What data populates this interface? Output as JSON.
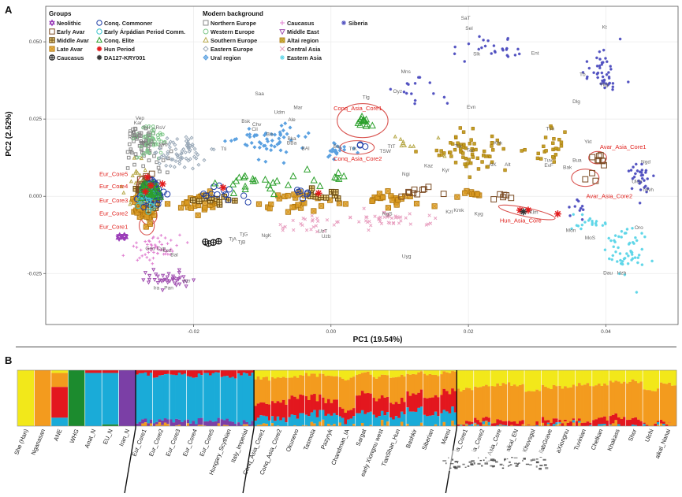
{
  "panels": {
    "a": "A",
    "b": "B"
  },
  "chart_data": [
    {
      "type": "scatter",
      "panel": "A",
      "xlabel": "PC1 (19.54%)",
      "ylabel": "PC2 (2.52%)",
      "xlim": [
        -0.0415,
        0.0505
      ],
      "ylim": [
        -0.0415,
        0.0615
      ],
      "xticks": [
        -0.02,
        0.0,
        0.02,
        0.04
      ],
      "xtick_labels": [
        "-0.02",
        "0.00",
        "0.02",
        "0.04"
      ],
      "yticks": [
        -0.025,
        0.0,
        0.025,
        0.05
      ],
      "ytick_labels": [
        "-0.025",
        "0.000",
        "0.025",
        "0.050"
      ],
      "legend": {
        "groups_title": "Groups",
        "groups": [
          {
            "name": "Neolithic",
            "marker": "hexagram",
            "color": "#9b3db8"
          },
          {
            "name": "Early Avar",
            "marker": "square",
            "color": "#7a4a22"
          },
          {
            "name": "Middle Avar",
            "marker": "square-cross",
            "color": "#6b4a10"
          },
          {
            "name": "Late Avar",
            "marker": "square-x",
            "color": "#d99a22"
          },
          {
            "name": "Caucasus",
            "marker": "circle-plus",
            "color": "#111111"
          },
          {
            "name": "Conq. Commoner",
            "marker": "circle",
            "color": "#1f3fa8"
          },
          {
            "name": "Early Árpádian Period Comm.",
            "marker": "circle",
            "color": "#3fc4cf"
          },
          {
            "name": "Conq. Elite",
            "marker": "triangle",
            "color": "#2ca02c"
          },
          {
            "name": "Hun Period",
            "marker": "star",
            "color": "#e31a1c"
          },
          {
            "name": "DA127-KRY001",
            "marker": "star",
            "color": "#333333"
          }
        ],
        "background_title": "Modern background",
        "background": [
          {
            "name": "Northern Europe",
            "marker": "square",
            "color": "#8a8a8a"
          },
          {
            "name": "Western Europe",
            "marker": "circle",
            "color": "#7fc88a"
          },
          {
            "name": "Southern Europe",
            "marker": "triangle",
            "color": "#b7a94a"
          },
          {
            "name": "Eastern Europe",
            "marker": "diamond",
            "color": "#9aa9b8"
          },
          {
            "name": "Ural region",
            "marker": "diamond-plus",
            "color": "#5aa0e0"
          },
          {
            "name": "Caucasus",
            "marker": "plus",
            "color": "#e07fd0"
          },
          {
            "name": "Middle East",
            "marker": "triangle-down",
            "color": "#a04fb0"
          },
          {
            "name": "Altai region",
            "marker": "square-x",
            "color": "#c0a020"
          },
          {
            "name": "Central Asia",
            "marker": "x",
            "color": "#e8a0c0"
          },
          {
            "name": "Eastern Asia",
            "marker": "asterisk",
            "color": "#5fd6e8"
          },
          {
            "name": "Siberia",
            "marker": "asterisk",
            "color": "#5050c0"
          }
        ]
      },
      "cluster_labels": [
        {
          "text": "Conq_Asia_Core1",
          "x": 0.0039,
          "y": 0.0278
        },
        {
          "text": "Conq_Asia_Core2",
          "x": 0.0039,
          "y": 0.0115
        },
        {
          "text": "Eur_Core5",
          "x": -0.0337,
          "y": 0.0065
        },
        {
          "text": "Eur_Core4",
          "x": -0.0337,
          "y": 0.0026
        },
        {
          "text": "Eur_Core3",
          "x": -0.0337,
          "y": -0.002
        },
        {
          "text": "Eur_Core2",
          "x": -0.0337,
          "y": -0.0062
        },
        {
          "text": "Eur_Core1",
          "x": -0.0337,
          "y": -0.0105
        },
        {
          "text": "Avar_Asia_Core1",
          "x": 0.0425,
          "y": 0.0153
        },
        {
          "text": "Avar_Asia_Core2",
          "x": 0.0405,
          "y": -0.0006
        },
        {
          "text": "Hun_Asia_Core",
          "x": 0.0276,
          "y": -0.0085
        }
      ],
      "population_labels": [
        {
          "text": "SaT",
          "x": 0.0196,
          "y": 0.0572
        },
        {
          "text": "Sel",
          "x": 0.0201,
          "y": 0.0538
        },
        {
          "text": "Slk",
          "x": 0.0212,
          "y": 0.0456
        },
        {
          "text": "Ent",
          "x": 0.0297,
          "y": 0.0458
        },
        {
          "text": "Kt",
          "x": 0.0398,
          "y": 0.0542
        },
        {
          "text": "Mns",
          "x": 0.0109,
          "y": 0.0398
        },
        {
          "text": "Saa",
          "x": -0.0104,
          "y": 0.0327
        },
        {
          "text": "Mar",
          "x": -0.0048,
          "y": 0.0282
        },
        {
          "text": "Udm",
          "x": -0.0075,
          "y": 0.0267
        },
        {
          "text": "Ale",
          "x": -0.0057,
          "y": 0.0243
        },
        {
          "text": "Bsk",
          "x": -0.0124,
          "y": 0.0238
        },
        {
          "text": "Chv",
          "x": -0.0108,
          "y": 0.0228
        },
        {
          "text": "Cil",
          "x": -0.0111,
          "y": 0.0212
        },
        {
          "text": "Bls",
          "x": -0.0089,
          "y": 0.0196
        },
        {
          "text": "Bka",
          "x": -0.0057,
          "y": 0.0182
        },
        {
          "text": "BBa",
          "x": -0.0057,
          "y": 0.0167
        },
        {
          "text": "BAl",
          "x": -0.0037,
          "y": 0.015
        },
        {
          "text": "Vep",
          "x": -0.0278,
          "y": 0.0248
        },
        {
          "text": "Kar",
          "x": -0.0281,
          "y": 0.0233
        },
        {
          "text": "RsI",
          "x": -0.0269,
          "y": 0.0217
        },
        {
          "text": "RsV",
          "x": -0.0248,
          "y": 0.0217
        },
        {
          "text": "Fin",
          "x": -0.029,
          "y": 0.0205
        },
        {
          "text": "RuV",
          "x": -0.0288,
          "y": 0.0186
        },
        {
          "text": "RsT",
          "x": -0.0272,
          "y": 0.0172
        },
        {
          "text": "Mrd",
          "x": -0.0244,
          "y": 0.0162
        },
        {
          "text": "RuT",
          "x": -0.0262,
          "y": 0.0162
        },
        {
          "text": "Tti",
          "x": -0.0156,
          "y": 0.0148
        },
        {
          "text": "Tlg",
          "x": 0.0051,
          "y": 0.0316
        },
        {
          "text": "Oyz",
          "x": 0.0097,
          "y": 0.0335
        },
        {
          "text": "Evn",
          "x": 0.0204,
          "y": 0.0283
        },
        {
          "text": "Dlg",
          "x": 0.0357,
          "y": 0.0302
        },
        {
          "text": "Ykg",
          "x": 0.0397,
          "y": 0.0356
        },
        {
          "text": "Tb",
          "x": 0.0366,
          "y": 0.0389
        },
        {
          "text": "Ykt",
          "x": 0.0374,
          "y": 0.0172
        },
        {
          "text": "Ngd",
          "x": 0.0458,
          "y": 0.0106
        },
        {
          "text": "Ulch",
          "x": 0.0445,
          "y": 0.0042
        },
        {
          "text": "Nivh",
          "x": 0.0462,
          "y": 0.0016
        },
        {
          "text": "Bua",
          "x": 0.0358,
          "y": 0.0111
        },
        {
          "text": "Bak",
          "x": 0.0344,
          "y": 0.0088
        },
        {
          "text": "Tvn",
          "x": 0.0319,
          "y": 0.0213
        },
        {
          "text": "Khk",
          "x": 0.0243,
          "y": 0.0168
        },
        {
          "text": "Alt",
          "x": 0.0257,
          "y": 0.0097
        },
        {
          "text": "AlK",
          "x": 0.0235,
          "y": 0.0097
        },
        {
          "text": "Trk",
          "x": 0.0185,
          "y": 0.0158
        },
        {
          "text": "Tel",
          "x": 0.0202,
          "y": 0.0143
        },
        {
          "text": "Tuv",
          "x": 0.0316,
          "y": 0.0112
        },
        {
          "text": "EvF",
          "x": 0.0317,
          "y": 0.0095
        },
        {
          "text": "TtT",
          "x": 0.0088,
          "y": 0.0156
        },
        {
          "text": "Bsr",
          "x": 0.0009,
          "y": 0.0156
        },
        {
          "text": "TtK",
          "x": 0.0032,
          "y": 0.0148
        },
        {
          "text": "TSW",
          "x": 0.0079,
          "y": 0.0141
        },
        {
          "text": "Kyr",
          "x": 0.0167,
          "y": 0.008
        },
        {
          "text": "Kaz",
          "x": 0.0142,
          "y": 0.0093
        },
        {
          "text": "Ngi",
          "x": 0.0109,
          "y": 0.0067
        },
        {
          "text": "NgS",
          "x": 0.0082,
          "y": -0.0062
        },
        {
          "text": "Kyg",
          "x": 0.0215,
          "y": -0.0062
        },
        {
          "text": "Kzl",
          "x": 0.0172,
          "y": -0.0056
        },
        {
          "text": "Kmk",
          "x": 0.0186,
          "y": -0.0051
        },
        {
          "text": "Klm",
          "x": 0.0295,
          "y": -0.0057
        },
        {
          "text": "Mon",
          "x": 0.0349,
          "y": -0.0115
        },
        {
          "text": "MoS",
          "x": 0.0377,
          "y": -0.014
        },
        {
          "text": "Oro",
          "x": 0.0448,
          "y": -0.0107
        },
        {
          "text": "Dau",
          "x": 0.0403,
          "y": -0.0253
        },
        {
          "text": "Hzh",
          "x": 0.0423,
          "y": -0.0253
        },
        {
          "text": "Uyg",
          "x": 0.011,
          "y": -0.02
        },
        {
          "text": "Uzb",
          "x": -0.0007,
          "y": -0.0134
        },
        {
          "text": "UzT",
          "x": -0.0012,
          "y": -0.0118
        },
        {
          "text": "TjB",
          "x": -0.013,
          "y": -0.0154
        },
        {
          "text": "TjA",
          "x": -0.0143,
          "y": -0.0144
        },
        {
          "text": "TjG",
          "x": -0.0127,
          "y": -0.0128
        },
        {
          "text": "NgK",
          "x": -0.0094,
          "y": -0.0132
        },
        {
          "text": "Geo",
          "x": -0.0263,
          "y": -0.0174
        },
        {
          "text": "Cyp",
          "x": -0.0247,
          "y": -0.0174
        },
        {
          "text": "Lez",
          "x": -0.0238,
          "y": -0.018
        },
        {
          "text": "Bal",
          "x": -0.0228,
          "y": -0.0194
        },
        {
          "text": "Azr",
          "x": -0.021,
          "y": -0.0278
        },
        {
          "text": "Ira",
          "x": -0.0254,
          "y": -0.0302
        },
        {
          "text": "Pan",
          "x": -0.0236,
          "y": -0.0302
        }
      ]
    },
    {
      "type": "bar",
      "panel": "B",
      "stacked": true,
      "subtype": "admixture",
      "ylim": [
        0,
        1
      ],
      "components": [
        {
          "name": "K1",
          "color": "#f2e81a"
        },
        {
          "name": "K2",
          "color": "#f39b1e"
        },
        {
          "name": "K3",
          "color": "#e3171e"
        },
        {
          "name": "K4",
          "color": "#1aabd8"
        },
        {
          "name": "K5",
          "color": "#1c8b2e"
        },
        {
          "name": "K6",
          "color": "#7b3fa6"
        }
      ],
      "categories": [
        "She (Han)",
        "Nganasan",
        "ANE",
        "WHG",
        "Anat_N",
        "EU_N",
        "Iran_N",
        "Eur_Core1",
        "Eur_Core2",
        "Eur_Core3",
        "Eur_Core4",
        "Eur_Core5",
        "Hungary_Scythian",
        "Italy_Imperial",
        "Conq_Asia_Core1",
        "Conq_Asia_Core2",
        "Okunevo",
        "Tasmola",
        "Pazyryk",
        "Chandman_IA",
        "Sargat",
        "early Xiongnu west",
        "TianShan_Hun",
        "Bashkir",
        "Siberian",
        "Mansi",
        "ia_Core1",
        "ia_Core2",
        "Asia_Core",
        "aikal_EN",
        "Khovsgol",
        "llabGrave",
        "aXiongnu",
        "Tuvinian",
        "Chelkan",
        "Khakass",
        "Shor",
        "Ulchi",
        "aikal_Nanai"
      ],
      "visible_labels": [
        "She (Han)",
        "Nganasan",
        "ANE",
        "WHG",
        "Anat_N",
        "EU_N",
        "Iran_N",
        "Eur_Core1",
        "Eur_Core2",
        "Eur_Core3",
        "Eur_Core4",
        "Eur_Core5",
        "Hungary_Scythian",
        "Italy_Imperial",
        "Conq_Asia_Core1",
        "Conq_Asia_Core2",
        "Okunevo",
        "Tasmola",
        "Pazyryk",
        "Chandman_IA",
        "Sargat",
        "early Xiongnu west",
        "TianShan_Hun",
        "Bashkir",
        "Siberian",
        "Mansi",
        "ia_Core1",
        "ia_Core2",
        "Asia_Core",
        "aikal_EN",
        "Khovsgol",
        "llabGrave",
        "aXiongnu",
        "Tuvinian",
        "Chelkan",
        "Khakass",
        "Shor",
        "Ulchi",
        "aikal_Nanai"
      ],
      "series": [
        {
          "name": "K1",
          "values": [
            1.0,
            0.0,
            0.05,
            0.0,
            0.0,
            0.0,
            0.0,
            0.0,
            0.0,
            0.0,
            0.0,
            0.0,
            0.0,
            0.0,
            0.15,
            0.12,
            0.1,
            0.08,
            0.1,
            0.15,
            0.05,
            0.12,
            0.1,
            0.05,
            0.08,
            0.05,
            0.35,
            0.3,
            0.25,
            0.25,
            0.35,
            0.3,
            0.3,
            0.25,
            0.25,
            0.2,
            0.2,
            0.35,
            0.25
          ]
        },
        {
          "name": "K2",
          "values": [
            0.0,
            1.0,
            0.25,
            0.0,
            0.0,
            0.0,
            0.0,
            0.0,
            0.0,
            0.0,
            0.0,
            0.0,
            0.0,
            0.0,
            0.45,
            0.45,
            0.35,
            0.4,
            0.45,
            0.55,
            0.35,
            0.4,
            0.45,
            0.35,
            0.4,
            0.35,
            0.6,
            0.6,
            0.65,
            0.65,
            0.6,
            0.6,
            0.6,
            0.65,
            0.6,
            0.62,
            0.68,
            0.62,
            0.7
          ]
        },
        {
          "name": "K3",
          "values": [
            0.0,
            0.0,
            0.55,
            0.0,
            0.05,
            0.05,
            0.0,
            0.08,
            0.1,
            0.08,
            0.1,
            0.06,
            0.12,
            0.08,
            0.25,
            0.28,
            0.35,
            0.32,
            0.25,
            0.18,
            0.35,
            0.28,
            0.25,
            0.3,
            0.3,
            0.35,
            0.03,
            0.06,
            0.07,
            0.08,
            0.03,
            0.07,
            0.07,
            0.08,
            0.12,
            0.15,
            0.1,
            0.02,
            0.04
          ]
        },
        {
          "name": "K4",
          "values": [
            0.0,
            0.0,
            0.15,
            0.0,
            0.95,
            0.92,
            0.0,
            0.85,
            0.82,
            0.82,
            0.8,
            0.84,
            0.78,
            0.86,
            0.15,
            0.15,
            0.2,
            0.2,
            0.2,
            0.12,
            0.25,
            0.2,
            0.2,
            0.3,
            0.22,
            0.25,
            0.02,
            0.04,
            0.03,
            0.02,
            0.02,
            0.03,
            0.03,
            0.02,
            0.03,
            0.03,
            0.02,
            0.01,
            0.01
          ]
        },
        {
          "name": "K5",
          "values": [
            0.0,
            0.0,
            0.0,
            1.0,
            0.0,
            0.03,
            0.0,
            0.0,
            0.0,
            0.0,
            0.0,
            0.0,
            0.0,
            0.0,
            0.0,
            0.0,
            0.0,
            0.0,
            0.0,
            0.0,
            0.0,
            0.0,
            0.0,
            0.0,
            0.0,
            0.0,
            0.0,
            0.0,
            0.0,
            0.0,
            0.0,
            0.0,
            0.0,
            0.0,
            0.0,
            0.0,
            0.0,
            0.0,
            0.0
          ]
        },
        {
          "name": "K6",
          "values": [
            0.0,
            0.0,
            0.0,
            0.0,
            0.0,
            0.0,
            1.0,
            0.07,
            0.08,
            0.1,
            0.1,
            0.1,
            0.1,
            0.06,
            0.0,
            0.0,
            0.0,
            0.0,
            0.0,
            0.0,
            0.0,
            0.0,
            0.0,
            0.0,
            0.0,
            0.0,
            0.0,
            0.0,
            0.0,
            0.0,
            0.0,
            0.0,
            0.0,
            0.0,
            0.0,
            0.0,
            0.0,
            0.0,
            0.0
          ]
        }
      ]
    }
  ]
}
